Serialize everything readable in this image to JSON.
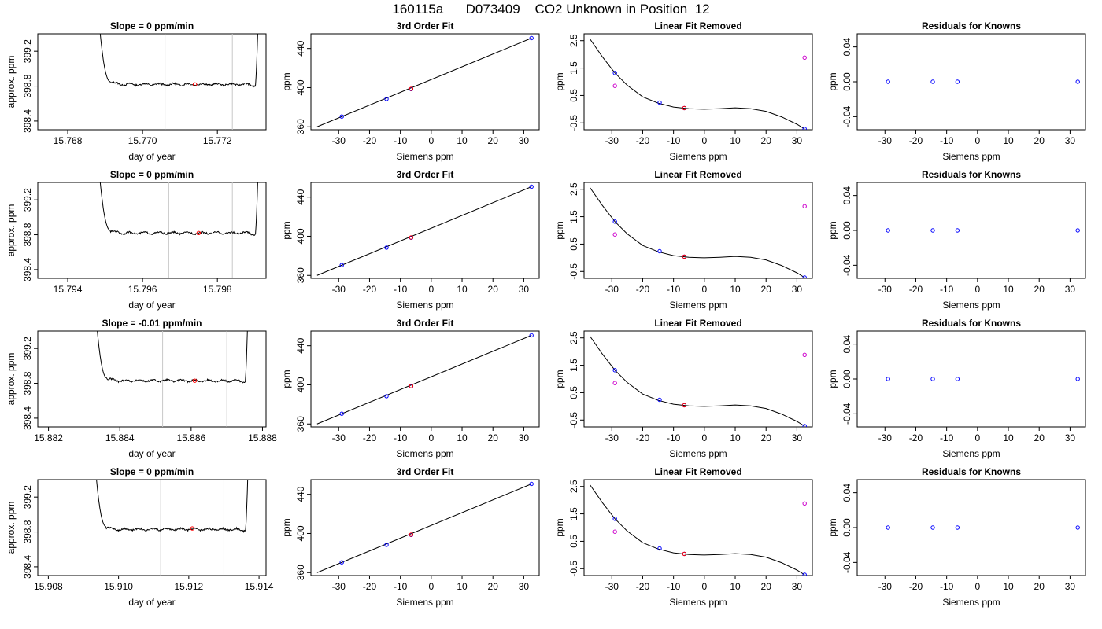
{
  "figure": {
    "title": "160115a      D073409    CO2 Unknown in Position  12"
  },
  "chart_data": [
    {
      "type": "line",
      "row": 1,
      "col": 1,
      "title": "Slope =  0  ppm/min",
      "xlabel": "day of year",
      "ylabel": "approx. ppm",
      "xlim": [
        15.7672,
        15.7733
      ],
      "ylim": [
        398.3,
        399.4
      ],
      "xticks": [
        15.768,
        15.77,
        15.772
      ],
      "xticklabels": [
        "15.768",
        "15.770",
        "15.772"
      ],
      "yticks": [
        398.4,
        398.8,
        399.2
      ],
      "yticklabels": [
        "398.4",
        "398.8",
        "399.2"
      ],
      "window_start": 15.7688,
      "window_end": 15.7731,
      "base_level": 398.82,
      "spike_peak": 399.75,
      "vlines": [
        15.7706,
        15.7724
      ],
      "marker": {
        "x": 15.7714,
        "y": 398.82
      }
    },
    {
      "type": "scatter",
      "row": 1,
      "col": 2,
      "title": "3rd Order Fit",
      "xlabel": "Siemens ppm",
      "ylabel": "ppm",
      "xlim": [
        -39,
        35
      ],
      "ylim": [
        357,
        455
      ],
      "xticks": [
        -30,
        -20,
        -10,
        0,
        10,
        20,
        30
      ],
      "xticklabels": [
        "-30",
        "-20",
        "-10",
        "0",
        "10",
        "20",
        "30"
      ],
      "yticks": [
        360,
        400,
        440
      ],
      "yticklabels": [
        "360",
        "400",
        "440"
      ],
      "line": {
        "x": [
          -37,
          32.5
        ],
        "y": [
          360,
          450.6
        ]
      },
      "knowns": [
        {
          "x": -29,
          "y": 370.5
        },
        {
          "x": -14.5,
          "y": 388.4
        },
        {
          "x": -6.5,
          "y": 398.5
        },
        {
          "x": 32.5,
          "y": 450.6
        }
      ],
      "unknown": {
        "x": -6.5,
        "y": 398.8
      }
    },
    {
      "type": "line",
      "row": 1,
      "col": 3,
      "title": "Linear Fit Removed",
      "xlabel": "Siemens ppm",
      "ylabel": "ppm",
      "xlim": [
        -39,
        35
      ],
      "ylim": [
        -0.75,
        2.75
      ],
      "xticks": [
        -30,
        -20,
        -10,
        0,
        10,
        20,
        30
      ],
      "xticklabels": [
        "-30",
        "-20",
        "-10",
        "0",
        "10",
        "20",
        "30"
      ],
      "yticks": [
        -0.5,
        0.5,
        1.5,
        2.5
      ],
      "yticklabels": [
        "-0.5",
        "0.5",
        "1.5",
        "2.5"
      ],
      "curve": [
        [
          -37,
          2.55
        ],
        [
          -33,
          1.9
        ],
        [
          -29,
          1.32
        ],
        [
          -25,
          0.87
        ],
        [
          -20,
          0.45
        ],
        [
          -15,
          0.22
        ],
        [
          -10,
          0.08
        ],
        [
          -5,
          0.02
        ],
        [
          0,
          0.0
        ],
        [
          5,
          0.02
        ],
        [
          10,
          0.05
        ],
        [
          15,
          0.02
        ],
        [
          20,
          -0.08
        ],
        [
          25,
          -0.28
        ],
        [
          30,
          -0.55
        ],
        [
          32.5,
          -0.72
        ]
      ],
      "knowns": [
        {
          "x": -29,
          "y": 1.32
        },
        {
          "x": -14.5,
          "y": 0.24
        },
        {
          "x": -6.5,
          "y": 0.04
        },
        {
          "x": 32.5,
          "y": -0.72
        }
      ],
      "unknown": {
        "x": -6.5,
        "y": 0.04
      },
      "others": [
        {
          "x": -29,
          "y": 0.85
        },
        {
          "x": 32.5,
          "y": 1.88
        }
      ]
    },
    {
      "type": "scatter",
      "row": 1,
      "col": 4,
      "title": "Residuals for Knowns",
      "xlabel": "Siemens ppm",
      "ylabel": "ppm",
      "xlim": [
        -39,
        35
      ],
      "ylim": [
        -0.055,
        0.055
      ],
      "xticks": [
        -30,
        -20,
        -10,
        0,
        10,
        20,
        30
      ],
      "xticklabels": [
        "-30",
        "-20",
        "-10",
        "0",
        "10",
        "20",
        "30"
      ],
      "yticks": [
        -0.04,
        0.0,
        0.04
      ],
      "yticklabels": [
        "-0.04",
        "0.00",
        "0.04"
      ],
      "points": [
        {
          "x": -29,
          "y": 0
        },
        {
          "x": -14.5,
          "y": 0
        },
        {
          "x": -6.5,
          "y": 0
        },
        {
          "x": 32.5,
          "y": 0
        }
      ]
    },
    {
      "type": "line",
      "row": 2,
      "col": 1,
      "title": "Slope =  0  ppm/min",
      "xlabel": "day of year",
      "ylabel": "approx. ppm",
      "xlim": [
        15.7932,
        15.7993
      ],
      "ylim": [
        398.3,
        399.4
      ],
      "xticks": [
        15.794,
        15.796,
        15.798
      ],
      "xticklabels": [
        "15.794",
        "15.796",
        "15.798"
      ],
      "yticks": [
        398.4,
        398.8,
        399.2
      ],
      "yticklabels": [
        "398.4",
        "398.8",
        "399.2"
      ],
      "window_start": 15.7948,
      "window_end": 15.7991,
      "base_level": 398.82,
      "spike_peak": 399.75,
      "vlines": [
        15.7967,
        15.7984
      ],
      "marker": {
        "x": 15.7975,
        "y": 398.82
      }
    },
    {
      "type": "scatter",
      "row": 2,
      "col": 2,
      "title": "3rd Order Fit",
      "xlabel": "Siemens ppm",
      "ylabel": "ppm",
      "xlim": [
        -39,
        35
      ],
      "ylim": [
        357,
        455
      ],
      "xticks": [
        -30,
        -20,
        -10,
        0,
        10,
        20,
        30
      ],
      "xticklabels": [
        "-30",
        "-20",
        "-10",
        "0",
        "10",
        "20",
        "30"
      ],
      "yticks": [
        360,
        400,
        440
      ],
      "yticklabels": [
        "360",
        "400",
        "440"
      ],
      "line": {
        "x": [
          -37,
          32.5
        ],
        "y": [
          360,
          450.6
        ]
      },
      "knowns": [
        {
          "x": -29,
          "y": 370.5
        },
        {
          "x": -14.5,
          "y": 388.4
        },
        {
          "x": -6.5,
          "y": 398.5
        },
        {
          "x": 32.5,
          "y": 450.6
        }
      ],
      "unknown": {
        "x": -6.5,
        "y": 398.8
      }
    },
    {
      "type": "line",
      "row": 2,
      "col": 3,
      "title": "Linear Fit Removed",
      "xlabel": "Siemens ppm",
      "ylabel": "ppm",
      "xlim": [
        -39,
        35
      ],
      "ylim": [
        -0.75,
        2.75
      ],
      "xticks": [
        -30,
        -20,
        -10,
        0,
        10,
        20,
        30
      ],
      "xticklabels": [
        "-30",
        "-20",
        "-10",
        "0",
        "10",
        "20",
        "30"
      ],
      "yticks": [
        -0.5,
        0.5,
        1.5,
        2.5
      ],
      "yticklabels": [
        "-0.5",
        "0.5",
        "1.5",
        "2.5"
      ],
      "curve": [
        [
          -37,
          2.55
        ],
        [
          -33,
          1.9
        ],
        [
          -29,
          1.32
        ],
        [
          -25,
          0.87
        ],
        [
          -20,
          0.45
        ],
        [
          -15,
          0.22
        ],
        [
          -10,
          0.08
        ],
        [
          -5,
          0.02
        ],
        [
          0,
          0.0
        ],
        [
          5,
          0.02
        ],
        [
          10,
          0.05
        ],
        [
          15,
          0.02
        ],
        [
          20,
          -0.08
        ],
        [
          25,
          -0.28
        ],
        [
          30,
          -0.55
        ],
        [
          32.5,
          -0.72
        ]
      ],
      "knowns": [
        {
          "x": -29,
          "y": 1.32
        },
        {
          "x": -14.5,
          "y": 0.24
        },
        {
          "x": -6.5,
          "y": 0.04
        },
        {
          "x": 32.5,
          "y": -0.72
        }
      ],
      "unknown": {
        "x": -6.5,
        "y": 0.04
      },
      "others": [
        {
          "x": -29,
          "y": 0.85
        },
        {
          "x": 32.5,
          "y": 1.88
        }
      ]
    },
    {
      "type": "scatter",
      "row": 2,
      "col": 4,
      "title": "Residuals for Knowns",
      "xlabel": "Siemens ppm",
      "ylabel": "ppm",
      "xlim": [
        -39,
        35
      ],
      "ylim": [
        -0.055,
        0.055
      ],
      "xticks": [
        -30,
        -20,
        -10,
        0,
        10,
        20,
        30
      ],
      "xticklabels": [
        "-30",
        "-20",
        "-10",
        "0",
        "10",
        "20",
        "30"
      ],
      "yticks": [
        -0.04,
        0.0,
        0.04
      ],
      "yticklabels": [
        "-0.04",
        "0.00",
        "0.04"
      ],
      "points": [
        {
          "x": -29,
          "y": 0
        },
        {
          "x": -14.5,
          "y": 0
        },
        {
          "x": -6.5,
          "y": 0
        },
        {
          "x": 32.5,
          "y": 0
        }
      ]
    },
    {
      "type": "line",
      "row": 3,
      "col": 1,
      "title": "Slope =  -0.01  ppm/min",
      "xlabel": "day of year",
      "ylabel": "approx. ppm",
      "xlim": [
        15.8817,
        15.8881
      ],
      "ylim": [
        398.3,
        399.4
      ],
      "xticks": [
        15.882,
        15.884,
        15.886,
        15.888
      ],
      "xticklabels": [
        "15.882",
        "15.884",
        "15.886",
        "15.888"
      ],
      "yticks": [
        398.4,
        398.8,
        399.2
      ],
      "yticklabels": [
        "398.4",
        "398.8",
        "399.2"
      ],
      "window_start": 15.8833,
      "window_end": 15.8876,
      "base_level": 398.83,
      "spike_peak": 399.75,
      "vlines": [
        15.8852,
        15.887
      ],
      "marker": {
        "x": 15.8861,
        "y": 398.83
      }
    },
    {
      "type": "scatter",
      "row": 3,
      "col": 2,
      "title": "3rd Order Fit",
      "xlabel": "Siemens ppm",
      "ylabel": "ppm",
      "xlim": [
        -39,
        35
      ],
      "ylim": [
        357,
        455
      ],
      "xticks": [
        -30,
        -20,
        -10,
        0,
        10,
        20,
        30
      ],
      "xticklabels": [
        "-30",
        "-20",
        "-10",
        "0",
        "10",
        "20",
        "30"
      ],
      "yticks": [
        360,
        400,
        440
      ],
      "yticklabels": [
        "360",
        "400",
        "440"
      ],
      "line": {
        "x": [
          -37,
          32.5
        ],
        "y": [
          360,
          450.6
        ]
      },
      "knowns": [
        {
          "x": -29,
          "y": 370.5
        },
        {
          "x": -14.5,
          "y": 388.4
        },
        {
          "x": -6.5,
          "y": 398.5
        },
        {
          "x": 32.5,
          "y": 450.6
        }
      ],
      "unknown": {
        "x": -6.5,
        "y": 398.8
      }
    },
    {
      "type": "line",
      "row": 3,
      "col": 3,
      "title": "Linear Fit Removed",
      "xlabel": "Siemens ppm",
      "ylabel": "ppm",
      "xlim": [
        -39,
        35
      ],
      "ylim": [
        -0.75,
        2.75
      ],
      "xticks": [
        -30,
        -20,
        -10,
        0,
        10,
        20,
        30
      ],
      "xticklabels": [
        "-30",
        "-20",
        "-10",
        "0",
        "10",
        "20",
        "30"
      ],
      "yticks": [
        -0.5,
        0.5,
        1.5,
        2.5
      ],
      "yticklabels": [
        "-0.5",
        "0.5",
        "1.5",
        "2.5"
      ],
      "curve": [
        [
          -37,
          2.55
        ],
        [
          -33,
          1.9
        ],
        [
          -29,
          1.32
        ],
        [
          -25,
          0.87
        ],
        [
          -20,
          0.45
        ],
        [
          -15,
          0.22
        ],
        [
          -10,
          0.08
        ],
        [
          -5,
          0.02
        ],
        [
          0,
          0.0
        ],
        [
          5,
          0.02
        ],
        [
          10,
          0.05
        ],
        [
          15,
          0.02
        ],
        [
          20,
          -0.08
        ],
        [
          25,
          -0.28
        ],
        [
          30,
          -0.55
        ],
        [
          32.5,
          -0.72
        ]
      ],
      "knowns": [
        {
          "x": -29,
          "y": 1.32
        },
        {
          "x": -14.5,
          "y": 0.24
        },
        {
          "x": -6.5,
          "y": 0.04
        },
        {
          "x": 32.5,
          "y": -0.72
        }
      ],
      "unknown": {
        "x": -6.5,
        "y": 0.04
      },
      "others": [
        {
          "x": -29,
          "y": 0.85
        },
        {
          "x": 32.5,
          "y": 1.88
        }
      ]
    },
    {
      "type": "scatter",
      "row": 3,
      "col": 4,
      "title": "Residuals for Knowns",
      "xlabel": "Siemens ppm",
      "ylabel": "ppm",
      "xlim": [
        -39,
        35
      ],
      "ylim": [
        -0.055,
        0.055
      ],
      "xticks": [
        -30,
        -20,
        -10,
        0,
        10,
        20,
        30
      ],
      "xticklabels": [
        "-30",
        "-20",
        "-10",
        "0",
        "10",
        "20",
        "30"
      ],
      "yticks": [
        -0.04,
        0.0,
        0.04
      ],
      "yticklabels": [
        "-0.04",
        "0.00",
        "0.04"
      ],
      "points": [
        {
          "x": -29,
          "y": 0
        },
        {
          "x": -14.5,
          "y": 0
        },
        {
          "x": -6.5,
          "y": 0
        },
        {
          "x": 32.5,
          "y": 0
        }
      ]
    },
    {
      "type": "line",
      "row": 4,
      "col": 1,
      "title": "Slope =  0  ppm/min",
      "xlabel": "day of year",
      "ylabel": "approx. ppm",
      "xlim": [
        15.9077,
        15.9142
      ],
      "ylim": [
        398.3,
        399.4
      ],
      "xticks": [
        15.908,
        15.91,
        15.912,
        15.914
      ],
      "xticklabels": [
        "15.908",
        "15.910",
        "15.912",
        "15.914"
      ],
      "yticks": [
        398.4,
        398.8,
        399.2
      ],
      "yticklabels": [
        "398.4",
        "398.8",
        "399.2"
      ],
      "window_start": 15.9093,
      "window_end": 15.9137,
      "base_level": 398.83,
      "spike_peak": 399.75,
      "vlines": [
        15.9112,
        15.913
      ],
      "marker": {
        "x": 15.9121,
        "y": 398.84
      }
    },
    {
      "type": "scatter",
      "row": 4,
      "col": 2,
      "title": "3rd Order Fit",
      "xlabel": "Siemens ppm",
      "ylabel": "ppm",
      "xlim": [
        -39,
        35
      ],
      "ylim": [
        357,
        455
      ],
      "xticks": [
        -30,
        -20,
        -10,
        0,
        10,
        20,
        30
      ],
      "xticklabels": [
        "-30",
        "-20",
        "-10",
        "0",
        "10",
        "20",
        "30"
      ],
      "yticks": [
        360,
        400,
        440
      ],
      "yticklabels": [
        "360",
        "400",
        "440"
      ],
      "line": {
        "x": [
          -37,
          32.5
        ],
        "y": [
          360,
          450.6
        ]
      },
      "knowns": [
        {
          "x": -29,
          "y": 370.5
        },
        {
          "x": -14.5,
          "y": 388.4
        },
        {
          "x": -6.5,
          "y": 398.5
        },
        {
          "x": 32.5,
          "y": 450.6
        }
      ],
      "unknown": {
        "x": -6.5,
        "y": 398.8
      }
    },
    {
      "type": "line",
      "row": 4,
      "col": 3,
      "title": "Linear Fit Removed",
      "xlabel": "Siemens ppm",
      "ylabel": "ppm",
      "xlim": [
        -39,
        35
      ],
      "ylim": [
        -0.75,
        2.75
      ],
      "xticks": [
        -30,
        -20,
        -10,
        0,
        10,
        20,
        30
      ],
      "xticklabels": [
        "-30",
        "-20",
        "-10",
        "0",
        "10",
        "20",
        "30"
      ],
      "yticks": [
        -0.5,
        0.5,
        1.5,
        2.5
      ],
      "yticklabels": [
        "-0.5",
        "0.5",
        "1.5",
        "2.5"
      ],
      "curve": [
        [
          -37,
          2.55
        ],
        [
          -33,
          1.9
        ],
        [
          -29,
          1.32
        ],
        [
          -25,
          0.87
        ],
        [
          -20,
          0.45
        ],
        [
          -15,
          0.22
        ],
        [
          -10,
          0.08
        ],
        [
          -5,
          0.02
        ],
        [
          0,
          0.0
        ],
        [
          5,
          0.02
        ],
        [
          10,
          0.05
        ],
        [
          15,
          0.02
        ],
        [
          20,
          -0.08
        ],
        [
          25,
          -0.28
        ],
        [
          30,
          -0.55
        ],
        [
          32.5,
          -0.72
        ]
      ],
      "knowns": [
        {
          "x": -29,
          "y": 1.32
        },
        {
          "x": -14.5,
          "y": 0.24
        },
        {
          "x": -6.5,
          "y": 0.04
        },
        {
          "x": 32.5,
          "y": -0.72
        }
      ],
      "unknown": {
        "x": -6.5,
        "y": 0.04
      },
      "others": [
        {
          "x": -29,
          "y": 0.85
        },
        {
          "x": 32.5,
          "y": 1.88
        }
      ]
    },
    {
      "type": "scatter",
      "row": 4,
      "col": 4,
      "title": "Residuals for Knowns",
      "xlabel": "Siemens ppm",
      "ylabel": "ppm",
      "xlim": [
        -39,
        35
      ],
      "ylim": [
        -0.055,
        0.055
      ],
      "xticks": [
        -30,
        -20,
        -10,
        0,
        10,
        20,
        30
      ],
      "xticklabels": [
        "-30",
        "-20",
        "-10",
        "0",
        "10",
        "20",
        "30"
      ],
      "yticks": [
        -0.04,
        0.0,
        0.04
      ],
      "yticklabels": [
        "-0.04",
        "0.00",
        "0.04"
      ],
      "points": [
        {
          "x": -29,
          "y": 0
        },
        {
          "x": -14.5,
          "y": 0
        },
        {
          "x": -6.5,
          "y": 0
        },
        {
          "x": 32.5,
          "y": 0
        }
      ]
    }
  ],
  "colors": {
    "trace": "#000000",
    "vline": "#c8c8c8",
    "known_point": "#0000ff",
    "unknown_point": "#ff0000",
    "other_point": "#cc00cc",
    "axis": "#000000"
  }
}
